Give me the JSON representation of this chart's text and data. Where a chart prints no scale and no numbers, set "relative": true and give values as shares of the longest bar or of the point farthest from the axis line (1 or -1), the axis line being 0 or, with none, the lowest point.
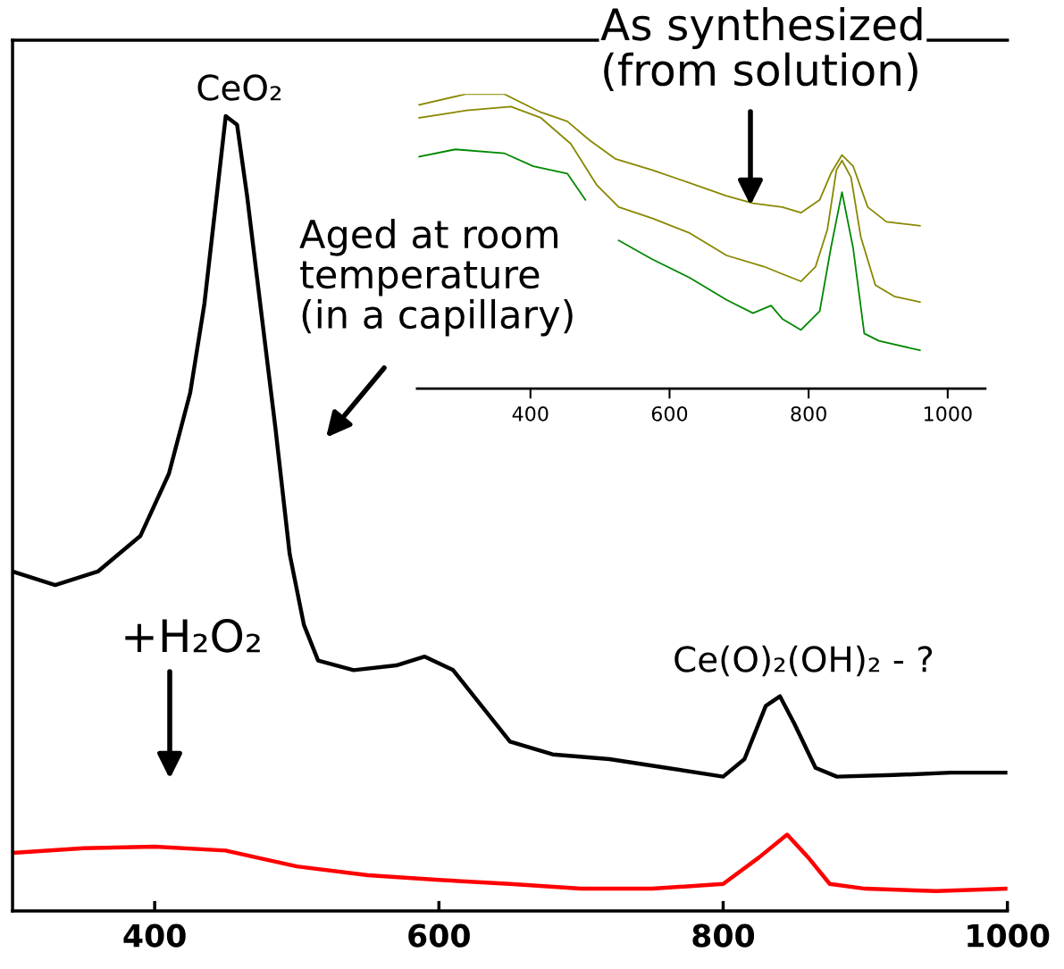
{
  "chart_data": [
    {
      "type": "line",
      "relative": true,
      "xlim": [
        300,
        1000
      ],
      "xticks": [
        400,
        600,
        800,
        1000
      ],
      "grid": false,
      "marker": "none",
      "line_style": "solid",
      "series": [
        {
          "color": "#000000",
          "x": [
            300,
            330,
            360,
            390,
            410,
            425,
            435,
            445,
            450,
            458,
            465,
            475,
            485,
            495,
            505,
            515,
            540,
            570,
            590,
            610,
            630,
            650,
            680,
            720,
            760,
            800,
            815,
            830,
            840,
            850,
            865,
            880,
            920,
            960,
            1000
          ],
          "values": [
            0.427,
            0.41,
            0.427,
            0.472,
            0.55,
            0.652,
            0.764,
            0.921,
            1.0,
            0.989,
            0.9,
            0.753,
            0.607,
            0.449,
            0.36,
            0.315,
            0.303,
            0.309,
            0.32,
            0.303,
            0.258,
            0.213,
            0.197,
            0.191,
            0.18,
            0.169,
            0.191,
            0.258,
            0.27,
            0.236,
            0.18,
            0.169,
            0.171,
            0.174,
            0.174
          ]
        },
        {
          "color": "#ff0000",
          "x": [
            300,
            350,
            400,
            450,
            500,
            550,
            600,
            650,
            700,
            750,
            800,
            825,
            845,
            860,
            875,
            900,
            950,
            1000
          ],
          "values": [
            0.073,
            0.079,
            0.081,
            0.076,
            0.056,
            0.045,
            0.039,
            0.034,
            0.028,
            0.028,
            0.034,
            0.067,
            0.096,
            0.067,
            0.034,
            0.028,
            0.025,
            0.028
          ]
        }
      ],
      "annotations": [
        {
          "text": "CeO₂",
          "x": 450,
          "y": 1.0
        },
        "Aged at room\ntemperature\n(in a capillary)",
        "+H₂O₂",
        {
          "text": "Ce(O)₂(OH)₂ - ?",
          "x": 840,
          "y": 0.27
        }
      ]
    },
    {
      "type": "line",
      "relative": true,
      "xlim": [
        237,
        1054
      ],
      "xticks": [
        400,
        600,
        800,
        1000
      ],
      "grid": false,
      "marker": "none",
      "line_style": "solid",
      "series": [
        {
          "color": "#888800",
          "x": [
            240,
            308,
            362,
            415,
            453,
            485,
            522,
            575,
            629,
            682,
            720,
            762,
            789,
            816,
            832,
            848,
            864,
            885,
            912,
            960
          ],
          "values": [
            0.963,
            1.0,
            1.0,
            0.938,
            0.907,
            0.843,
            0.78,
            0.742,
            0.698,
            0.654,
            0.629,
            0.616,
            0.597,
            0.641,
            0.73,
            0.793,
            0.755,
            0.616,
            0.566,
            0.553
          ]
        },
        {
          "color": "#888800",
          "x": [
            240,
            308,
            372,
            415,
            458,
            495,
            527,
            575,
            629,
            682,
            736,
            762,
            789,
            810,
            827,
            840,
            848,
            861,
            875,
            896,
            923,
            960
          ],
          "values": [
            0.919,
            0.944,
            0.957,
            0.919,
            0.831,
            0.692,
            0.616,
            0.578,
            0.528,
            0.452,
            0.414,
            0.389,
            0.364,
            0.414,
            0.54,
            0.742,
            0.774,
            0.717,
            0.515,
            0.351,
            0.313,
            0.294
          ]
        },
        {
          "color": "#008800",
          "x": [
            240,
            292,
            362,
            404,
            453,
            479,
            505,
            527,
            575,
            629,
            682,
            720,
            746,
            762,
            789,
            816,
            832,
            848,
            864,
            880,
            901,
            960
          ],
          "values": [
            0.787,
            0.812,
            0.799,
            0.755,
            0.73,
            0.641,
            null,
            0.503,
            0.439,
            0.376,
            0.301,
            0.256,
            0.282,
            0.237,
            0.199,
            0.263,
            0.477,
            0.667,
            0.477,
            0.187,
            0.162,
            0.13
          ]
        }
      ],
      "annotations": [
        "As synthesized\n(from solution)"
      ]
    }
  ]
}
